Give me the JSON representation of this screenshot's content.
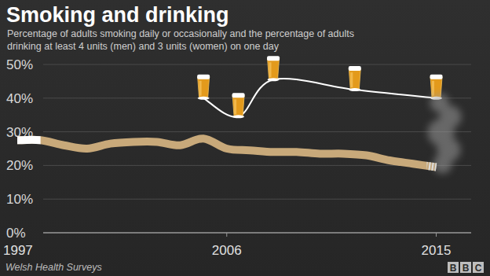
{
  "chart_data": {
    "type": "line",
    "title": "Smoking and drinking",
    "subtitle": [
      "Percentage of adults smoking daily or occasionally and the percentage of adults",
      "drinking at least 4 units (men) and 3 units (women) on one day"
    ],
    "source": "Welsh Health Surveys",
    "logo": "BBC",
    "xlim": [
      1997,
      2016.5
    ],
    "xticks": [
      1997,
      2006,
      2015
    ],
    "ylim": [
      0,
      50
    ],
    "yticks": [
      {
        "value": 0,
        "label": "0%"
      },
      {
        "value": 10,
        "label": "10%"
      },
      {
        "value": 20,
        "label": "20%"
      },
      {
        "value": 30,
        "label": "30%"
      },
      {
        "value": 40,
        "label": "40%"
      },
      {
        "value": 50,
        "label": "50%"
      }
    ],
    "grid": true,
    "series": [
      {
        "color": "#c8a97a",
        "marker": "cigarette",
        "line_style": "solid",
        "x": [
          1997,
          1998,
          1999,
          2000,
          2001,
          2002,
          2003,
          2004,
          2005,
          2006,
          2007,
          2008,
          2009,
          2010,
          2011,
          2012,
          2013,
          2014,
          2015
        ],
        "values": [
          27.5,
          27.5,
          26,
          25,
          26.5,
          27,
          27,
          26,
          28,
          25,
          24.5,
          24,
          24,
          23.5,
          23.5,
          23,
          21.5,
          20.5,
          19.5
        ]
      },
      {
        "color": "#ffffff",
        "marker": "glass",
        "line_style": "solid",
        "x": [
          2005,
          2006.5,
          2008,
          2011.5,
          2015
        ],
        "values": [
          40,
          34.5,
          45.5,
          42.5,
          40
        ]
      }
    ]
  }
}
